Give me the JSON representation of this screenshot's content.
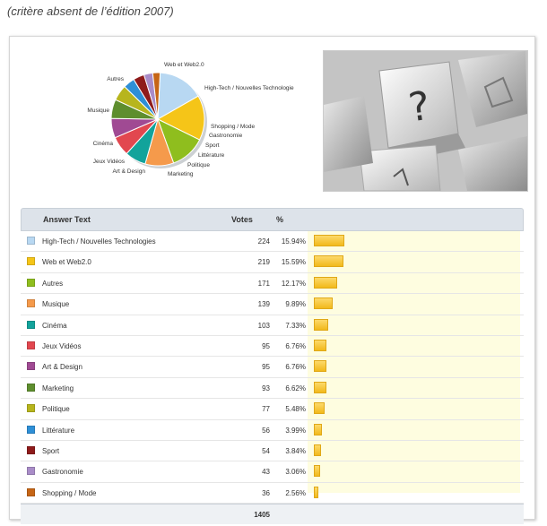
{
  "caption": "(critère absent de l’édition 2007)",
  "table": {
    "headers": {
      "answer": "Answer Text",
      "votes": "Votes",
      "pct": "%"
    },
    "total": "1405"
  },
  "chart_data": {
    "type": "pie",
    "categories": [
      "High-Tech / Nouvelles Technologies",
      "Web et Web2.0",
      "Autres",
      "Musique",
      "Cinéma",
      "Jeux Vidéos",
      "Art & Design",
      "Marketing",
      "Politique",
      "Littérature",
      "Sport",
      "Gastronomie",
      "Shopping / Mode"
    ],
    "pie_labels": [
      "High-Tech / Nouvelles Technologie",
      "Web et Web2.0",
      "Autres",
      "Musique",
      "Cinéma",
      "Jeux Vidéos",
      "Art & Design",
      "Marketing",
      "Politique",
      "Littérature",
      "Sport",
      "Gastronomie",
      "Shopping / Mode"
    ],
    "values": [
      224,
      219,
      171,
      139,
      103,
      95,
      95,
      93,
      77,
      56,
      54,
      43,
      36
    ],
    "percentages": [
      "15.94%",
      "15.59%",
      "12.17%",
      "9.89%",
      "7.33%",
      "6.76%",
      "6.76%",
      "6.62%",
      "5.48%",
      "3.99%",
      "3.84%",
      "3.06%",
      "2.56%"
    ],
    "colors": [
      "#b8d8f2",
      "#f5c518",
      "#8fbe1e",
      "#f59a4b",
      "#12a39b",
      "#e2474f",
      "#a04a93",
      "#5e8e2e",
      "#b7b51d",
      "#2e8fd6",
      "#8e1b1b",
      "#a98cc8",
      "#c66516"
    ],
    "legend": "none"
  }
}
